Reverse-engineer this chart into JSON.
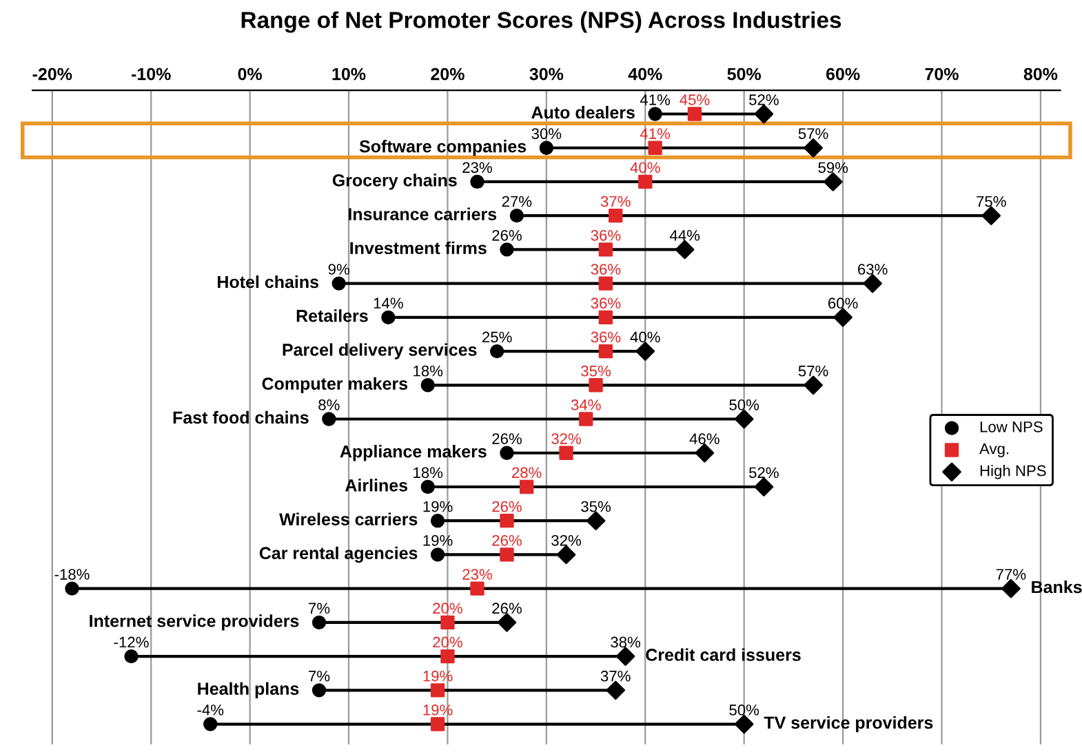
{
  "chart_data": {
    "type": "scatter",
    "orientation": "horizontal",
    "title": "Range of Net Promoter Scores (NPS) Across Industries",
    "categories": [
      "Auto dealers",
      "Software companies",
      "Grocery chains",
      "Insurance carriers",
      "Investment firms",
      "Hotel chains",
      "Retailers",
      "Parcel delivery services",
      "Computer makers",
      "Fast food chains",
      "Appliance makers",
      "Airlines",
      "Wireless carriers",
      "Car rental agencies",
      "Banks",
      "Internet service providers",
      "Credit card issuers",
      "Health plans",
      "TV service providers"
    ],
    "series": [
      {
        "name": "Low NPS",
        "color": "#000000",
        "marker": "circle",
        "values": [
          41,
          30,
          23,
          27,
          26,
          9,
          14,
          25,
          18,
          8,
          26,
          18,
          19,
          19,
          -18,
          7,
          -12,
          7,
          -4
        ],
        "value_labels": [
          "41%",
          "30%",
          "23%",
          "27%",
          "26%",
          "9%",
          "14%",
          "25%",
          "18%",
          "8%",
          "26%",
          "18%",
          "19%",
          "19%",
          "-18%",
          "7%",
          "-12%",
          "7%",
          "-4%"
        ]
      },
      {
        "name": "Avg.",
        "color": "#e02828",
        "marker": "square",
        "values": [
          45,
          41,
          40,
          37,
          36,
          36,
          36,
          36,
          35,
          34,
          32,
          28,
          26,
          26,
          23,
          20,
          20,
          19,
          19
        ],
        "value_labels": [
          "45%",
          "41%",
          "40%",
          "37%",
          "36%",
          "36%",
          "36%",
          "36%",
          "35%",
          "34%",
          "32%",
          "28%",
          "26%",
          "26%",
          "23%",
          "20%",
          "20%",
          "19%",
          "19%"
        ]
      },
      {
        "name": "High NPS",
        "color": "#000000",
        "marker": "diamond",
        "values": [
          52,
          57,
          59,
          75,
          44,
          63,
          60,
          40,
          57,
          50,
          46,
          52,
          35,
          32,
          77,
          26,
          38,
          37,
          50
        ],
        "value_labels": [
          "52%",
          "57%",
          "59%",
          "75%",
          "44%",
          "63%",
          "60%",
          "40%",
          "57%",
          "50%",
          "46%",
          "52%",
          "35%",
          "32%",
          "77%",
          "26%",
          "38%",
          "37%",
          "50%"
        ]
      }
    ],
    "xlim": [
      -22,
      82
    ],
    "xticks": [
      {
        "value": -20,
        "label": "-20%"
      },
      {
        "value": -10,
        "label": "-10%"
      },
      {
        "value": 0,
        "label": "0%"
      },
      {
        "value": 10,
        "label": "10%"
      },
      {
        "value": 20,
        "label": "20%"
      },
      {
        "value": 30,
        "label": "30%"
      },
      {
        "value": 40,
        "label": "40%"
      },
      {
        "value": 50,
        "label": "50%"
      },
      {
        "value": 60,
        "label": "60%"
      },
      {
        "value": 70,
        "label": "70%"
      },
      {
        "value": 80,
        "label": "80%"
      }
    ],
    "grid": "x",
    "legend": "right"
  }
}
